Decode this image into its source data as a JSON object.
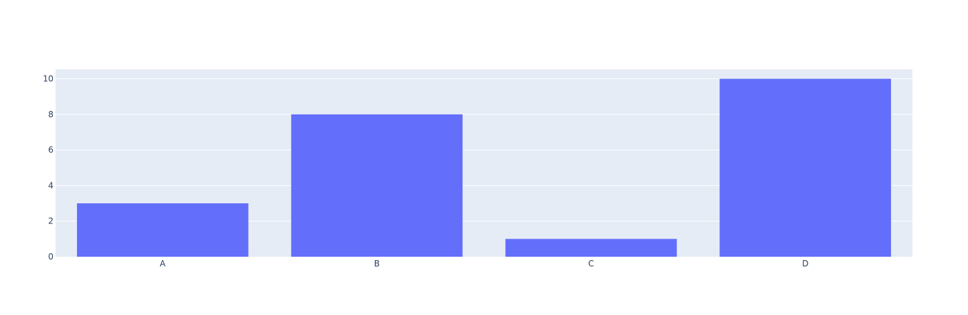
{
  "chart_data": {
    "type": "bar",
    "categories": [
      "A",
      "B",
      "C",
      "D"
    ],
    "values": [
      3,
      8,
      1,
      10
    ],
    "ylim": [
      0,
      10.526
    ],
    "yticks": [
      0,
      2,
      4,
      6,
      8,
      10
    ],
    "grid": true,
    "colors": {
      "bar": "#636efa",
      "plot_background": "#e5ecf6",
      "gridline": "#ffffff",
      "tick_text": "#2a3f5f"
    }
  }
}
